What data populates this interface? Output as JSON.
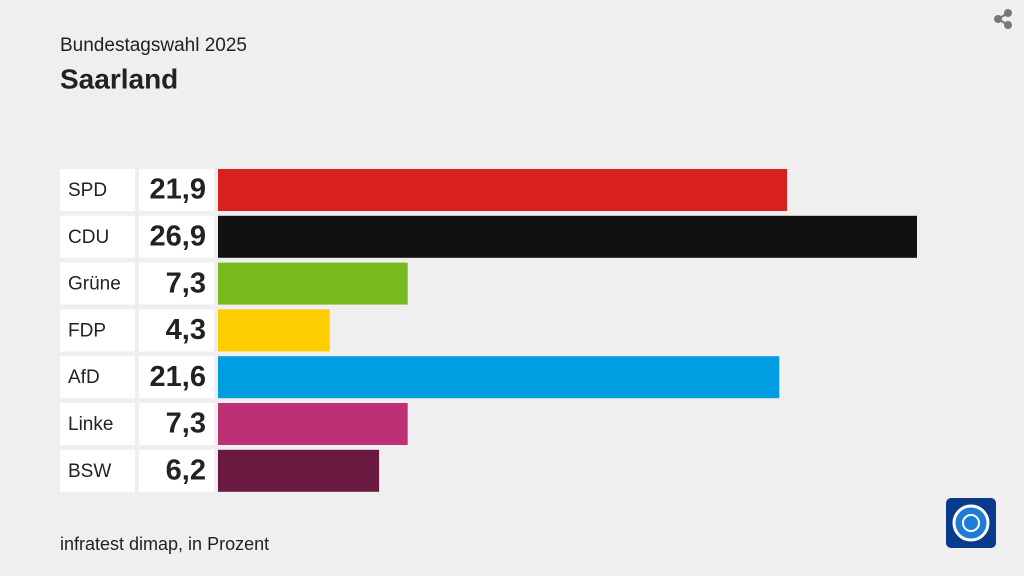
{
  "chart_data": {
    "type": "bar",
    "orientation": "horizontal",
    "subtitle": "Bundestagswahl 2025",
    "title": "Saarland",
    "source": "infratest dimap, in Prozent",
    "categories": [
      "SPD",
      "CDU",
      "Grüne",
      "FDP",
      "AfD",
      "Linke",
      "BSW"
    ],
    "values": [
      21.9,
      26.9,
      7.3,
      4.3,
      21.6,
      7.3,
      6.2
    ],
    "value_labels": [
      "21,9",
      "26,9",
      "7,3",
      "4,3",
      "21,6",
      "7,3",
      "6,2"
    ],
    "colors": [
      "#d8201f",
      "#111111",
      "#78bb1f",
      "#fecd00",
      "#009ee0",
      "#be3075",
      "#6a1a40"
    ]
  }
}
